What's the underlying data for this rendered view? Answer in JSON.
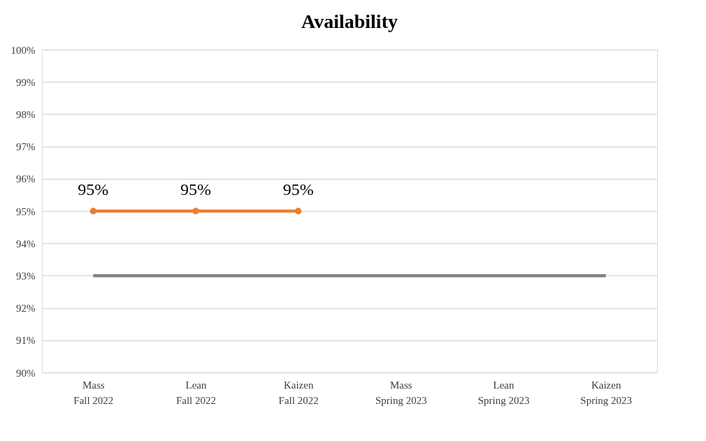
{
  "chart_data": {
    "type": "line",
    "title": "Availability",
    "categories": [
      "Mass\nFall 2022",
      "Lean\nFall 2022",
      "Kaizen\nFall 2022",
      "Mass\nSpring 2023",
      "Lean\nSpring 2023",
      "Kaizen\nSpring 2023"
    ],
    "series": [
      {
        "color": "#ed7d31",
        "marker": "circle",
        "values": [
          95,
          95,
          95,
          null,
          null,
          null
        ],
        "value_labels": [
          "95%",
          "95%",
          "95%",
          null,
          null,
          null
        ]
      },
      {
        "color": "#808080",
        "marker": "none",
        "values": [
          93,
          93,
          93,
          93,
          93,
          93
        ]
      }
    ],
    "ylim": [
      90,
      100
    ],
    "yticks": [
      {
        "value": 90,
        "label": "90%"
      },
      {
        "value": 91,
        "label": "91%"
      },
      {
        "value": 92,
        "label": "92%"
      },
      {
        "value": 93,
        "label": "93%"
      },
      {
        "value": 94,
        "label": "94%"
      },
      {
        "value": 95,
        "label": "95%"
      },
      {
        "value": 96,
        "label": "96%"
      },
      {
        "value": 97,
        "label": "97%"
      },
      {
        "value": 98,
        "label": "98%"
      },
      {
        "value": 99,
        "label": "99%"
      },
      {
        "value": 100,
        "label": "100%"
      }
    ],
    "grid": "y",
    "line_style": "solid"
  }
}
